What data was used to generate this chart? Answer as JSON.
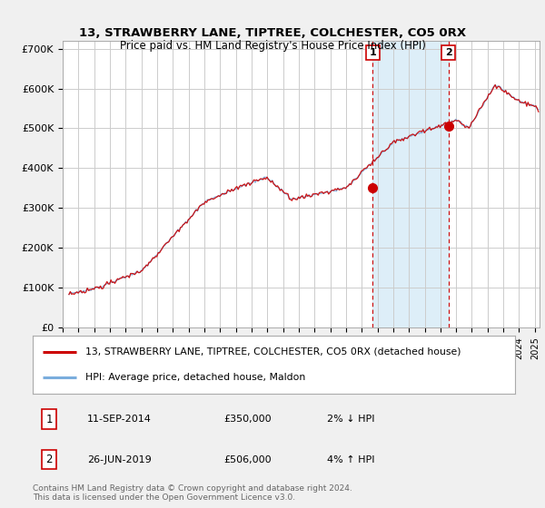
{
  "title": "13, STRAWBERRY LANE, TIPTREE, COLCHESTER, CO5 0RX",
  "subtitle": "Price paid vs. HM Land Registry's House Price Index (HPI)",
  "ylabel_ticks": [
    "£0",
    "£100K",
    "£200K",
    "£300K",
    "£400K",
    "£500K",
    "£600K",
    "£700K"
  ],
  "ylim": [
    0,
    720000
  ],
  "yticks": [
    0,
    100000,
    200000,
    300000,
    400000,
    500000,
    600000,
    700000
  ],
  "xlim_start": 1995.3,
  "xlim_end": 2025.3,
  "background_color": "#f0f0f0",
  "plot_bg": "#ffffff",
  "grid_color": "#cccccc",
  "line1_color": "#cc0000",
  "line2_color": "#7aaddd",
  "shade_color": "#ddeef8",
  "marker1_date": 2014.7,
  "marker1_price": 350000,
  "marker2_date": 2019.5,
  "marker2_price": 506000,
  "marker1_label": "1",
  "marker2_label": "2",
  "vline1_x": 2014.7,
  "vline2_x": 2019.5,
  "legend_line1": "13, STRAWBERRY LANE, TIPTREE, COLCHESTER, CO5 0RX (detached house)",
  "legend_line2": "HPI: Average price, detached house, Maldon",
  "note1_num": "1",
  "note1_date": "11-SEP-2014",
  "note1_price": "£350,000",
  "note1_hpi": "2% ↓ HPI",
  "note2_num": "2",
  "note2_date": "26-JUN-2019",
  "note2_price": "£506,000",
  "note2_hpi": "4% ↑ HPI",
  "footer": "Contains HM Land Registry data © Crown copyright and database right 2024.\nThis data is licensed under the Open Government Licence v3.0."
}
